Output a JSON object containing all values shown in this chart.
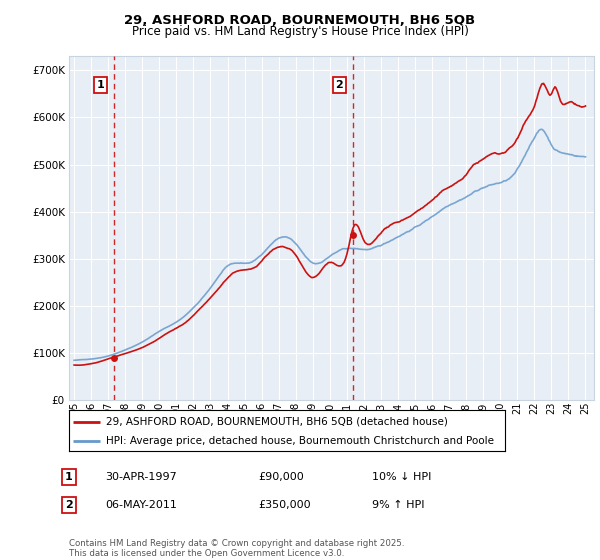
{
  "title_line1": "29, ASHFORD ROAD, BOURNEMOUTH, BH6 5QB",
  "title_line2": "Price paid vs. HM Land Registry's House Price Index (HPI)",
  "legend_line1": "29, ASHFORD ROAD, BOURNEMOUTH, BH6 5QB (detached house)",
  "legend_line2": "HPI: Average price, detached house, Bournemouth Christchurch and Poole",
  "footer": "Contains HM Land Registry data © Crown copyright and database right 2025.\nThis data is licensed under the Open Government Licence v3.0.",
  "transaction1_date": "30-APR-1997",
  "transaction1_price": "£90,000",
  "transaction1_hpi": "10% ↓ HPI",
  "transaction2_date": "06-MAY-2011",
  "transaction2_price": "£350,000",
  "transaction2_hpi": "9% ↑ HPI",
  "transaction1_x": 1997.33,
  "transaction2_x": 2011.36,
  "transaction1_y": 90000,
  "transaction2_y": 350000,
  "ylim": [
    0,
    730000
  ],
  "yticks": [
    0,
    100000,
    200000,
    300000,
    400000,
    500000,
    600000,
    700000
  ],
  "ytick_labels": [
    "£0",
    "£100K",
    "£200K",
    "£300K",
    "£400K",
    "£500K",
    "£600K",
    "£700K"
  ],
  "xlim_start": 1994.7,
  "xlim_end": 2025.5,
  "bg_color": "#e8eef5",
  "grid_color": "#c8d4e0",
  "red_color": "#cc1111",
  "blue_color": "#6699cc",
  "title_fontsize": 9.5,
  "subtitle_fontsize": 8.5
}
